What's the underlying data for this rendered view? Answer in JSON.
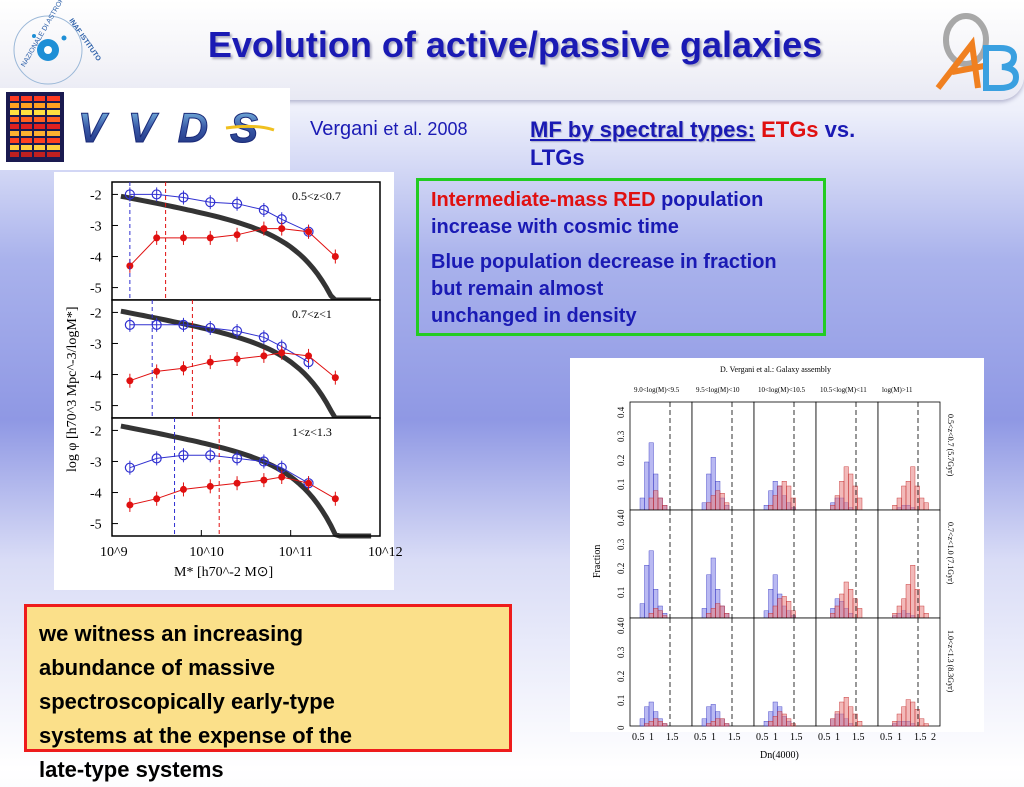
{
  "header": {
    "title": "Evolution of active/passive galaxies",
    "inaf_logo": {
      "ring_text": "NAZIONALE DI ASTROFISICA",
      "brand": "INAF ISTITUTO"
    },
    "oab_logo": {
      "letters": "OAB",
      "colors": {
        "o": "#b0b0b0",
        "a": "#f08020",
        "b": "#3aa0e0"
      }
    }
  },
  "vvds_logo": {
    "text": "VVDS"
  },
  "citation": {
    "author": "Vergani",
    "etal": "et al. 2008"
  },
  "mf_heading": {
    "prefix": "MF by spectral types:",
    "etgs": "ETGs",
    "vs": " vs.",
    "ltgs": "LTGs"
  },
  "finding_box": {
    "p1_red": "Intermediate-mass RED",
    "p1_rest": "population increase with cosmic time",
    "p2_blue": "Blue",
    "p2_rest": "population decrease in fraction but remain almost",
    "p2_overflow": "unchanged in density"
  },
  "conclusion_box": {
    "lines": [
      "we witness an increasing",
      "abundance of massive",
      "spectroscopically early-type",
      "systems at the expense of the",
      "late-type systems"
    ]
  },
  "colors": {
    "title": "#1a1ab4",
    "red": "#e01010",
    "green_border": "#22cc22",
    "red_border": "#ee1c1c",
    "yellow_fill": "#fbe08a"
  },
  "chart_data": [
    {
      "type": "scatter",
      "xlabel": "M* [h70^-2 M⊙]",
      "ylabel": "log φ [h70^3 Mpc^-3/logM*]",
      "x_ticks": [
        "10^9",
        "10^10",
        "10^11",
        "10^12"
      ],
      "xlim": [
        9,
        12
      ],
      "panels": [
        {
          "label": "0.5<z<0.7",
          "y_ticks": [
            "-2",
            "-3",
            "-4",
            "-5"
          ],
          "series": [
            {
              "color": "#3030d0",
              "x": [
                9.2,
                9.5,
                9.8,
                10.1,
                10.4,
                10.7,
                10.9,
                11.2
              ],
              "y": [
                -2.0,
                -2.0,
                -2.1,
                -2.25,
                -2.3,
                -2.5,
                -2.8,
                -3.2
              ]
            },
            {
              "color": "#e01010",
              "x": [
                9.2,
                9.5,
                9.8,
                10.1,
                10.4,
                10.7,
                10.9,
                11.2,
                11.5
              ],
              "y": [
                -4.3,
                -3.4,
                -3.4,
                -3.4,
                -3.3,
                -3.1,
                -3.1,
                -3.2,
                -4.0
              ]
            }
          ]
        },
        {
          "label": "0.7<z<1",
          "y_ticks": [
            "-2",
            "-3",
            "-4",
            "-5"
          ],
          "series": [
            {
              "color": "#3030d0",
              "x": [
                9.2,
                9.5,
                9.8,
                10.1,
                10.4,
                10.7,
                10.9,
                11.2
              ],
              "y": [
                -2.4,
                -2.4,
                -2.4,
                -2.5,
                -2.6,
                -2.8,
                -3.1,
                -3.6
              ]
            },
            {
              "color": "#e01010",
              "x": [
                9.2,
                9.5,
                9.8,
                10.1,
                10.4,
                10.7,
                10.9,
                11.2,
                11.5
              ],
              "y": [
                -4.2,
                -3.9,
                -3.8,
                -3.6,
                -3.5,
                -3.4,
                -3.3,
                -3.4,
                -4.1
              ]
            }
          ]
        },
        {
          "label": "1<z<1.3",
          "y_ticks": [
            "-2",
            "-3",
            "-4",
            "-5"
          ],
          "series": [
            {
              "color": "#3030d0",
              "x": [
                9.2,
                9.5,
                9.8,
                10.1,
                10.4,
                10.7,
                10.9,
                11.2
              ],
              "y": [
                -3.2,
                -2.9,
                -2.8,
                -2.8,
                -2.9,
                -3.0,
                -3.2,
                -3.7
              ]
            },
            {
              "color": "#e01010",
              "x": [
                9.2,
                9.5,
                9.8,
                10.1,
                10.4,
                10.7,
                10.9,
                11.2,
                11.5
              ],
              "y": [
                -4.4,
                -4.2,
                -3.9,
                -3.8,
                -3.7,
                -3.6,
                -3.5,
                -3.7,
                -4.2
              ]
            }
          ]
        }
      ]
    },
    {
      "type": "bar",
      "title": "D. Vergani et al.: Galaxy assembly",
      "xlabel": "Dn(4000)",
      "ylabel": "Fraction",
      "x_ticks": [
        "0.5",
        "1",
        "1.5",
        "2"
      ],
      "y_ticks": [
        "0",
        "0.1",
        "0.2",
        "0.3",
        "0.4"
      ],
      "column_labels": [
        "9.0<log(M)<9.5",
        "9.5<log(M)<10",
        "10<log(M)<10.5",
        "10.5<log(M)<11",
        "log(M)>11"
      ],
      "row_labels": [
        "0.5<z<0.7 (5.7Gyr)",
        "0.7<z<1.0 (7.1Gyr)",
        "1.0<z<1.3 (8.3Gyr)"
      ],
      "bins": [
        0.8,
        0.9,
        1.0,
        1.1,
        1.2,
        1.3,
        1.4,
        1.5,
        1.6,
        1.7
      ],
      "grid": [
        [
          {
            "blue": [
              0.05,
              0.2,
              0.28,
              0.15,
              0.05,
              0.02,
              0,
              0,
              0,
              0
            ],
            "red": [
              0,
              0,
              0.05,
              0.08,
              0.05,
              0.02,
              0,
              0,
              0,
              0
            ]
          },
          {
            "blue": [
              0.03,
              0.15,
              0.22,
              0.12,
              0.05,
              0.02,
              0,
              0,
              0,
              0
            ],
            "red": [
              0,
              0.03,
              0.06,
              0.08,
              0.07,
              0.03,
              0,
              0,
              0,
              0
            ]
          },
          {
            "blue": [
              0.02,
              0.08,
              0.12,
              0.1,
              0.06,
              0.03,
              0.01,
              0,
              0,
              0
            ],
            "red": [
              0,
              0.02,
              0.06,
              0.1,
              0.12,
              0.1,
              0.05,
              0,
              0,
              0
            ]
          },
          {
            "blue": [
              0,
              0.03,
              0.05,
              0.05,
              0.03,
              0.01,
              0,
              0,
              0,
              0
            ],
            "red": [
              0,
              0.02,
              0.06,
              0.12,
              0.18,
              0.15,
              0.1,
              0.05,
              0,
              0
            ]
          },
          {
            "blue": [
              0,
              0,
              0.01,
              0.02,
              0.02,
              0.01,
              0,
              0,
              0,
              0
            ],
            "red": [
              0,
              0.02,
              0.05,
              0.1,
              0.12,
              0.18,
              0.1,
              0.05,
              0.03,
              0
            ]
          }
        ],
        [
          {
            "blue": [
              0.06,
              0.22,
              0.28,
              0.12,
              0.05,
              0.02,
              0,
              0,
              0,
              0
            ],
            "red": [
              0,
              0,
              0.02,
              0.04,
              0.03,
              0.01,
              0,
              0,
              0,
              0
            ]
          },
          {
            "blue": [
              0.04,
              0.18,
              0.25,
              0.12,
              0.05,
              0.02,
              0,
              0,
              0,
              0
            ],
            "red": [
              0,
              0.02,
              0.04,
              0.06,
              0.05,
              0.02,
              0,
              0,
              0,
              0
            ]
          },
          {
            "blue": [
              0.03,
              0.12,
              0.18,
              0.1,
              0.05,
              0.03,
              0.01,
              0,
              0,
              0
            ],
            "red": [
              0,
              0.02,
              0.05,
              0.08,
              0.09,
              0.07,
              0.03,
              0,
              0,
              0
            ]
          },
          {
            "blue": [
              0,
              0.04,
              0.08,
              0.07,
              0.04,
              0.02,
              0,
              0,
              0,
              0
            ],
            "red": [
              0,
              0.02,
              0.05,
              0.1,
              0.15,
              0.12,
              0.08,
              0.04,
              0,
              0
            ]
          },
          {
            "blue": [
              0,
              0.01,
              0.02,
              0.03,
              0.02,
              0.01,
              0,
              0,
              0,
              0
            ],
            "red": [
              0,
              0.02,
              0.05,
              0.08,
              0.14,
              0.22,
              0.12,
              0.05,
              0.02,
              0
            ]
          }
        ],
        [
          {
            "blue": [
              0.03,
              0.08,
              0.1,
              0.06,
              0.03,
              0.01,
              0,
              0,
              0,
              0
            ],
            "red": [
              0,
              0.01,
              0.02,
              0.03,
              0.02,
              0.01,
              0,
              0,
              0,
              0
            ]
          },
          {
            "blue": [
              0.03,
              0.08,
              0.09,
              0.06,
              0.03,
              0.01,
              0,
              0,
              0,
              0
            ],
            "red": [
              0,
              0.01,
              0.02,
              0.03,
              0.03,
              0.01,
              0,
              0,
              0,
              0
            ]
          },
          {
            "blue": [
              0.02,
              0.06,
              0.1,
              0.08,
              0.04,
              0.02,
              0,
              0,
              0,
              0
            ],
            "red": [
              0,
              0.02,
              0.04,
              0.06,
              0.05,
              0.03,
              0.01,
              0,
              0,
              0
            ]
          },
          {
            "blue": [
              0,
              0.03,
              0.05,
              0.05,
              0.03,
              0.01,
              0,
              0,
              0,
              0
            ],
            "red": [
              0,
              0.03,
              0.06,
              0.1,
              0.12,
              0.08,
              0.05,
              0.02,
              0,
              0
            ]
          },
          {
            "blue": [
              0,
              0.01,
              0.02,
              0.02,
              0.02,
              0.01,
              0,
              0,
              0,
              0
            ],
            "red": [
              0,
              0.02,
              0.05,
              0.08,
              0.11,
              0.1,
              0.07,
              0.03,
              0.01,
              0
            ]
          }
        ]
      ]
    }
  ]
}
